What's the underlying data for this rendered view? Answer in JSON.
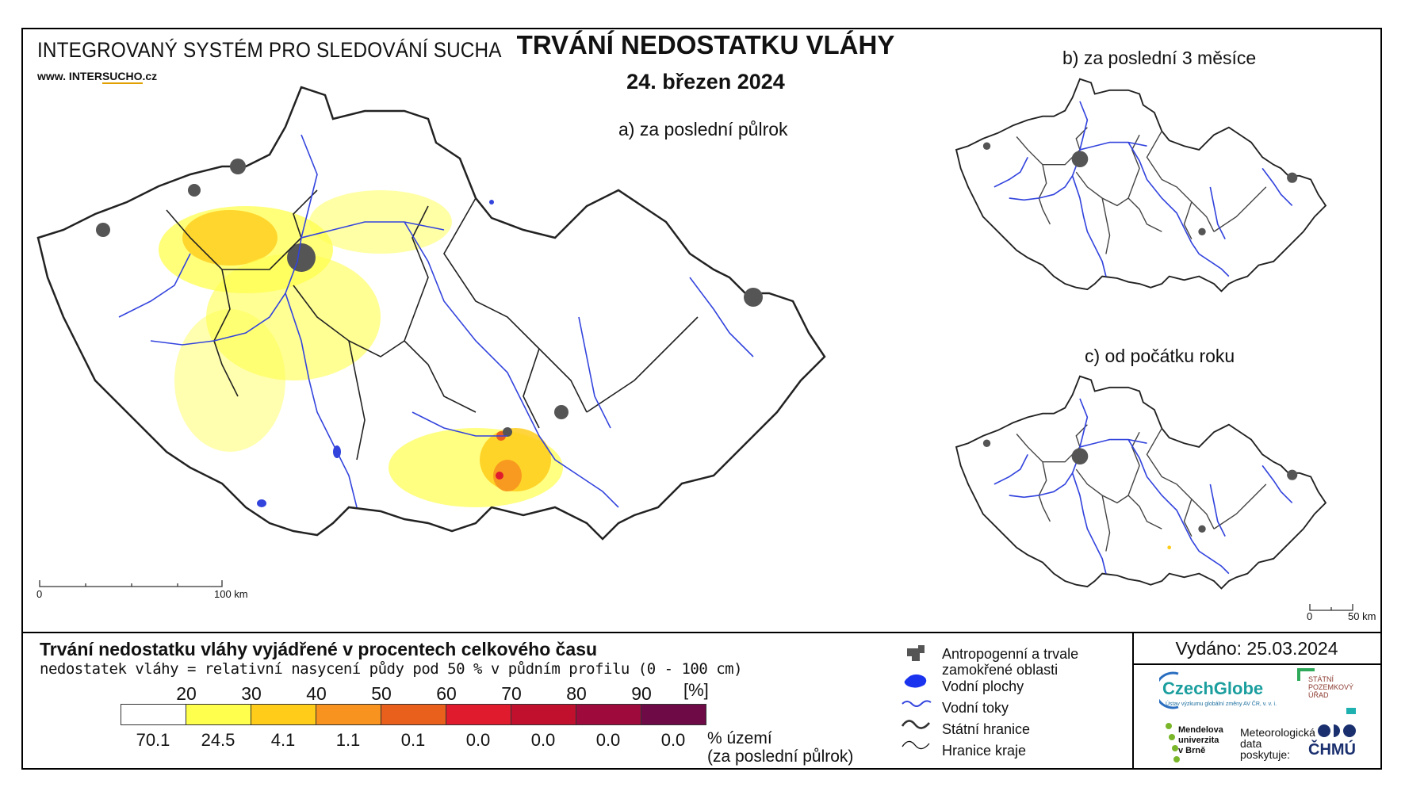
{
  "header": {
    "system_title": "INTEGROVANÝ SYSTÉM PRO SLEDOVÁNÍ SUCHA",
    "website_prefix": "www. INTER",
    "website_mid": "SUCHO",
    "website_suffix": ".cz",
    "title": "TRVÁNÍ NEDOSTATKU VLÁHY",
    "date": "24. březen 2024"
  },
  "panels": {
    "a": "a) za poslední půlrok",
    "b": "b) za poslední 3 měsíce",
    "c": "c) od počátku roku"
  },
  "scalebars": {
    "main": {
      "start": "0",
      "end": "100 km"
    },
    "small": {
      "start": "0",
      "end": "50 km"
    }
  },
  "legend": {
    "title": "Trvání nedostatku vláhy vyjádřené v procentech celkového času",
    "subtitle": "nedostatek vláhy = relativní nasycení půdy pod 50 % v půdním profilu (0 - 100 cm)",
    "unit": "[%]",
    "thresholds": [
      "20",
      "30",
      "40",
      "50",
      "60",
      "70",
      "80",
      "90"
    ],
    "colors": [
      "#ffffff",
      "#ffff4d",
      "#ffcc1a",
      "#f7931e",
      "#e8601c",
      "#e01b2e",
      "#c0102e",
      "#9e0a3c",
      "#6e0a46"
    ],
    "area_percent": [
      "70.1",
      "24.5",
      "4.1",
      "1.1",
      "0.1",
      "0.0",
      "0.0",
      "0.0",
      "0.0"
    ],
    "area_label_line1": "% území",
    "area_label_line2": "(za poslední půlrok)"
  },
  "map_legend": {
    "anthropogenic_line1": "Antropogenní a trvale",
    "anthropogenic_line2": "zamokřené oblasti",
    "water_bodies": "Vodní plochy",
    "watercourses": "Vodní toky",
    "state_border": "Státní hranice",
    "region_border": "Hranice kraje"
  },
  "footer": {
    "issued": "Vydáno: 25.03.2024",
    "czechglobe": "CzechGlobe",
    "czechglobe_sub": "Ústav výzkumu globální změny AV ČR, v. v. i.",
    "spu_line1": "STÁTNÍ",
    "spu_line2": "POZEMKOVÝ",
    "spu_line3": "ÚŘAD",
    "mendel_line1": "Mendelova",
    "mendel_line2": "univerzita",
    "mendel_line3": "v Brně",
    "meteo_line1": "Meteorologická",
    "meteo_line2": "data",
    "meteo_line3": "poskytuje:",
    "chmu": "ČHMÚ"
  },
  "colors": {
    "water": "#3344dd",
    "urban": "#555555",
    "border": "#222222"
  }
}
